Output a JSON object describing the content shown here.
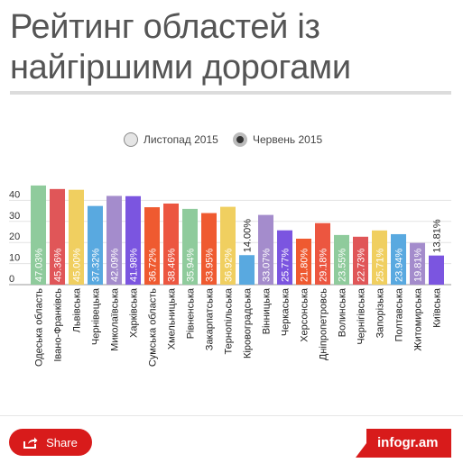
{
  "page": {
    "title": "Рейтинг областей із найгіршими дорогами"
  },
  "legend": {
    "items": [
      {
        "label": "Листопад 2015",
        "style": "hollow",
        "color": "#e5e5e5"
      },
      {
        "label": "Червень 2015",
        "style": "dot",
        "color": "#333333"
      }
    ]
  },
  "footer": {
    "share_label": "Share",
    "brand": "infogr.am",
    "accent_color": "#d81b1b"
  },
  "chart_data": {
    "type": "bar",
    "title": "Рейтинг областей із найгіршими дорогами",
    "xlabel": "",
    "ylabel": "",
    "ylim": [
      0,
      47
    ],
    "yticks": [
      0,
      10,
      20,
      30,
      40
    ],
    "grid": true,
    "legend_position": "top-center",
    "categories": [
      "Одеська область",
      "Івано-Франківсь",
      "Львівська",
      "Чернівецька",
      "Миколаївська",
      "Харківська",
      "Сумська область",
      "Хмельницька",
      "Рівненська",
      "Закарпатська",
      "Тернопільська",
      "Кіровоградська",
      "Вінницька",
      "Черкаська",
      "Херсонська",
      "Дніпропетровсь",
      "Волинська",
      "Чернігівська",
      "Запорізька",
      "Полтавська",
      "Житомирська",
      "Київська"
    ],
    "values": [
      47.03,
      45.36,
      45.0,
      37.32,
      42.09,
      41.98,
      36.72,
      38.46,
      35.94,
      33.95,
      36.92,
      14.0,
      33.07,
      25.77,
      21.8,
      29.18,
      23.55,
      22.73,
      25.71,
      23.94,
      19.81,
      13.81
    ],
    "value_labels": [
      "47.03%",
      "45.36%",
      "45.00%",
      "37.32%",
      "42.09%",
      "41.98%",
      "36.72%",
      "38.46%",
      "35.94%",
      "33.95%",
      "36.92%",
      "14.00%",
      "33.07%",
      "25.77%",
      "21.80%",
      "29.18%",
      "23.55%",
      "22.73%",
      "25.71%",
      "23.94%",
      "19.81%",
      "13.81%"
    ],
    "colors": [
      "#8fcb9c",
      "#e05658",
      "#f0cf60",
      "#59a9e0",
      "#a48ccc",
      "#7b55e0",
      "#ef5a30",
      "#ec5640",
      "#8fcb9c",
      "#ef5a30",
      "#f0cf60",
      "#59a9e0",
      "#a48ccc",
      "#7b55e0",
      "#ef5a30",
      "#ec5640",
      "#8fcb9c",
      "#e05658",
      "#f0cf60",
      "#59a9e0",
      "#a48ccc",
      "#7b55e0"
    ]
  }
}
